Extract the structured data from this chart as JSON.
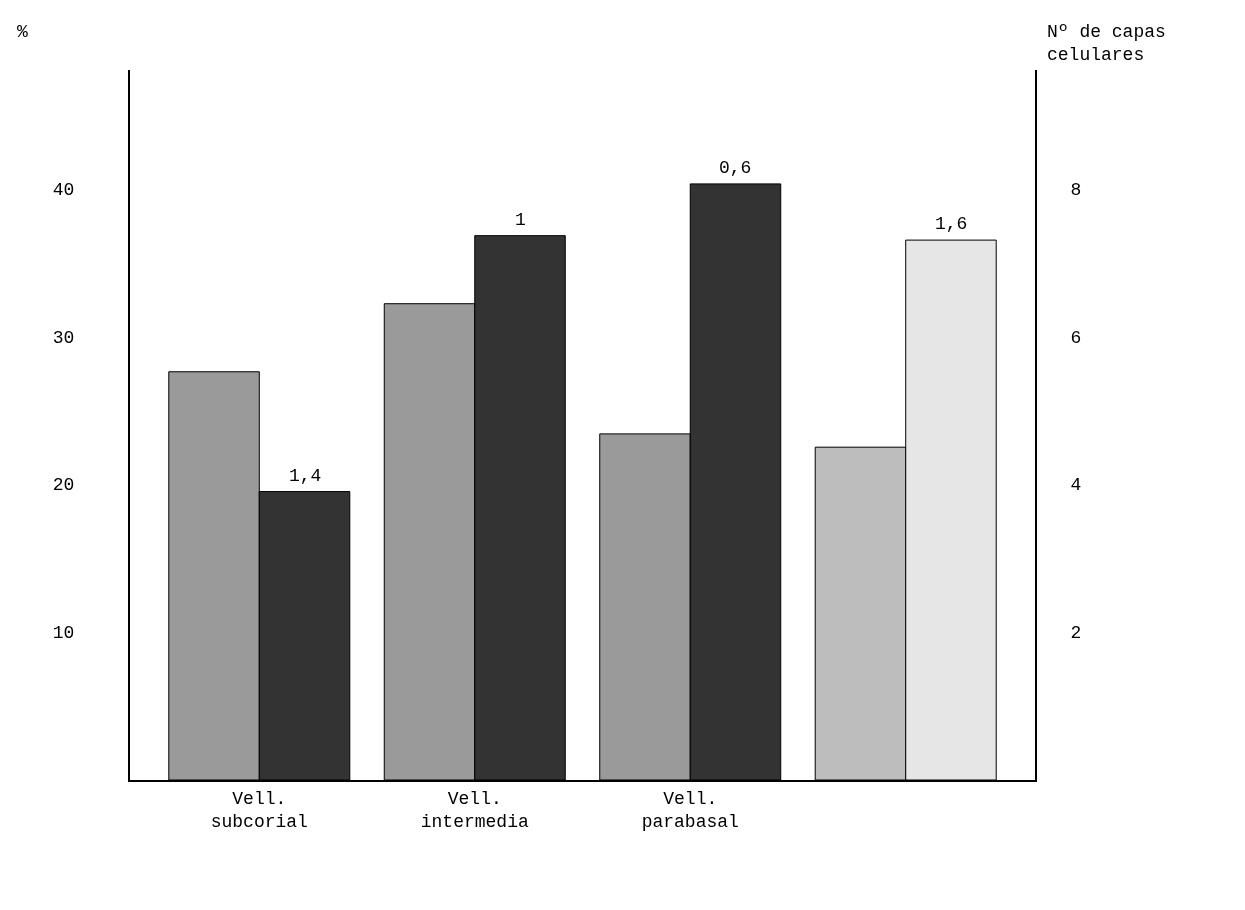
{
  "chart_data": {
    "type": "bar",
    "ylabel": "%",
    "y2label": "Nº de capas\ncelulares",
    "categories": [
      "Vell.\nsubcorial",
      "Vell.\nintermedia",
      "Vell.\nparabasal",
      null
    ],
    "series": [
      {
        "color": "#9a9a9a",
        "values": [
          27.6,
          32.2,
          23.4,
          null
        ]
      },
      {
        "color": "#333333",
        "values": [
          19.5,
          36.8,
          40.3,
          null
        ]
      },
      {
        "color": "#bdbdbd",
        "axis": "y2",
        "values": [
          null,
          null,
          null,
          4.5
        ]
      },
      {
        "color": "#e6e6e6",
        "axis": "y2",
        "values": [
          null,
          null,
          null,
          7.3
        ]
      }
    ],
    "annotations": [
      {
        "text": "1,4",
        "x": "Vell.\nsubcorial",
        "y": 19.5
      },
      {
        "text": "1",
        "x": "Vell.\nintermedia",
        "y": 36.8
      },
      {
        "text": "0,6",
        "x": "Vell.\nparabasal",
        "y": 40.3
      },
      "1,6"
    ],
    "ylim": [
      0,
      48
    ],
    "yticks": [
      10,
      20,
      30,
      40
    ],
    "y2lim": [
      0,
      9.6
    ],
    "y2ticks": [
      2,
      4,
      6,
      8
    ]
  }
}
